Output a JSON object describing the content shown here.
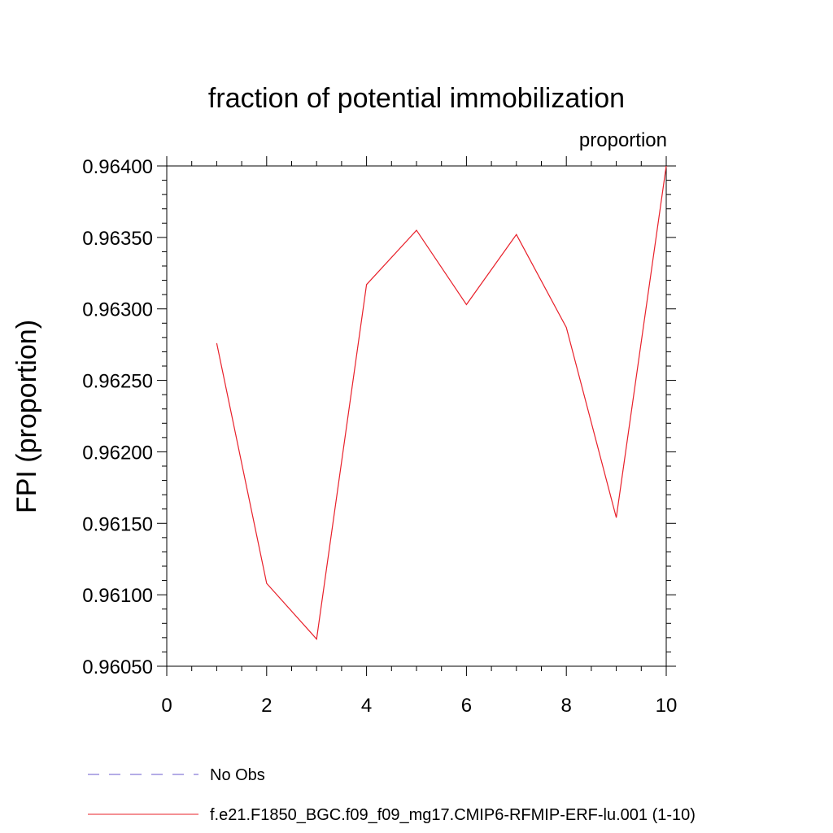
{
  "chart_data": {
    "type": "line",
    "title": "fraction of potential immobilization",
    "units_label": "proportion",
    "ylabel": "FPI  (proportion)",
    "xlabel": "",
    "xlim": [
      0,
      10
    ],
    "ylim": [
      0.9605,
      0.964
    ],
    "xticks": [
      0,
      2,
      4,
      6,
      8,
      10
    ],
    "xtick_labels": [
      "0",
      "2",
      "4",
      "6",
      "8",
      "10"
    ],
    "yticks": [
      0.9605,
      0.961,
      0.9615,
      0.962,
      0.9625,
      0.963,
      0.9635,
      0.964
    ],
    "ytick_labels": [
      "0.96050",
      "0.96100",
      "0.96150",
      "0.96200",
      "0.96250",
      "0.96300",
      "0.96350",
      "0.96400"
    ],
    "grid": false,
    "legend_position": "bottom",
    "series": [
      {
        "name": "f.e21.F1850_BGC.f09_f09_mg17.CMIP6-RFMIP-ERF-lu.001 (1-10)",
        "color": "#e8202a",
        "style": "solid",
        "x": [
          1,
          2,
          3,
          4,
          5,
          6,
          7,
          8,
          9,
          10
        ],
        "values": [
          0.96276,
          0.96108,
          0.96069,
          0.96317,
          0.96355,
          0.96303,
          0.96352,
          0.96287,
          0.96154,
          0.964
        ]
      }
    ],
    "legend": [
      {
        "label": "No Obs",
        "color": "#6a5acd",
        "style": "dashed"
      },
      {
        "label": "f.e21.F1850_BGC.f09_f09_mg17.CMIP6-RFMIP-ERF-lu.001 (1-10)",
        "color": "#e8202a",
        "style": "solid"
      }
    ]
  }
}
